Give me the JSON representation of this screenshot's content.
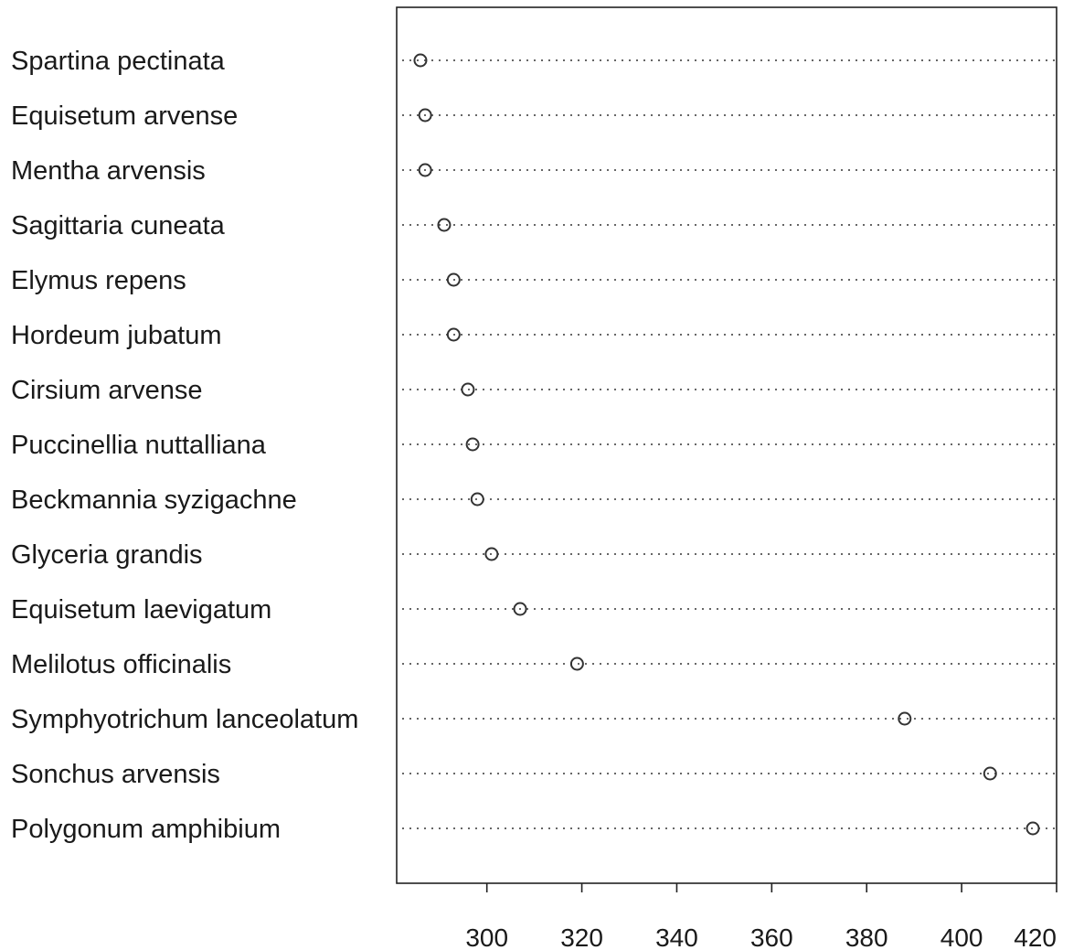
{
  "chart_data": {
    "type": "scatter",
    "title": "",
    "xlabel": "",
    "ylabel": "",
    "xlim": [
      281,
      420
    ],
    "xticks": [
      300,
      320,
      340,
      360,
      380,
      400,
      420
    ],
    "grid": false,
    "legend": "none",
    "marker": "open-circle",
    "categories": [
      "Spartina pectinata",
      "Equisetum arvense",
      "Mentha arvensis",
      "Sagittaria cuneata",
      "Elymus repens",
      "Hordeum jubatum",
      "Cirsium arvense",
      "Puccinellia nuttalliana",
      "Beckmannia syzigachne",
      "Glyceria grandis",
      "Equisetum laevigatum",
      "Melilotus officinalis",
      "Symphyotrichum lanceolatum",
      "Sonchus arvensis",
      "Polygonum amphibium"
    ],
    "values": [
      286,
      287,
      287,
      291,
      293,
      293,
      296,
      297,
      298,
      301,
      307,
      319,
      388,
      406,
      415
    ],
    "colors": {
      "marker": "#333333",
      "guide": "#333333",
      "text": "#1a1a1a"
    }
  }
}
